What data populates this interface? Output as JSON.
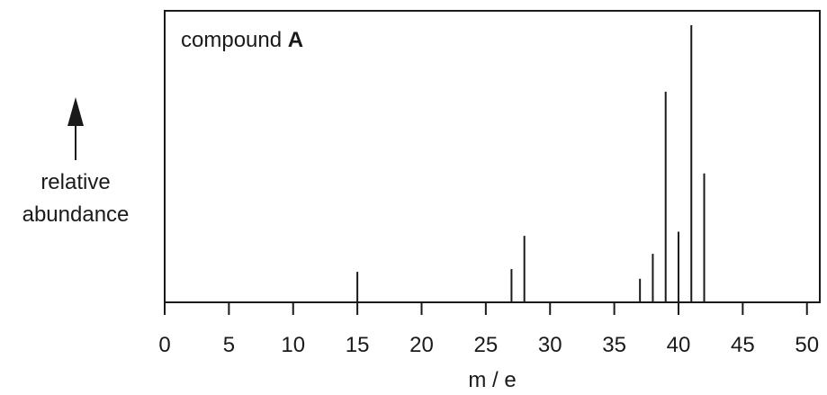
{
  "chart_data": {
    "type": "bar",
    "title_prefix": "compound ",
    "title_bold": "A",
    "xlabel": "m / e",
    "ylabel_lines": [
      "relative",
      "abundance"
    ],
    "xlim": [
      0,
      51
    ],
    "ylim": [
      0,
      100
    ],
    "xticks": [
      0,
      5,
      10,
      15,
      20,
      25,
      30,
      35,
      40,
      45,
      50
    ],
    "grid": false,
    "legend": "none",
    "peaks": [
      {
        "x": 15,
        "y": 11
      },
      {
        "x": 27,
        "y": 12
      },
      {
        "x": 28,
        "y": 24
      },
      {
        "x": 37,
        "y": 8.5
      },
      {
        "x": 38,
        "y": 17.5
      },
      {
        "x": 39,
        "y": 76
      },
      {
        "x": 40,
        "y": 25.5
      },
      {
        "x": 41,
        "y": 100
      },
      {
        "x": 42,
        "y": 46.5
      }
    ],
    "colors": {
      "ink": "#1a1a1a",
      "background": "#ffffff"
    }
  }
}
